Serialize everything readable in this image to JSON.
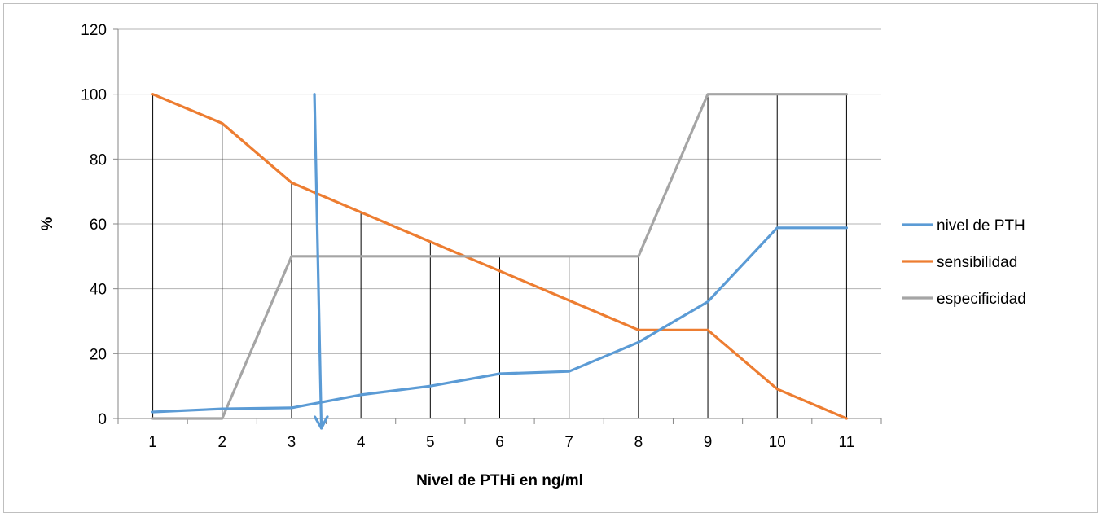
{
  "chart_data": {
    "type": "line",
    "title": "",
    "xlabel": "Nivel de PTHi en ng/ml",
    "ylabel": "%",
    "categories": [
      "1",
      "2",
      "3",
      "4",
      "5",
      "6",
      "7",
      "8",
      "9",
      "10",
      "11"
    ],
    "ylim": [
      0,
      120
    ],
    "yticks": [
      "0",
      "20",
      "40",
      "60",
      "80",
      "100",
      "120"
    ],
    "grid": "horizontal",
    "legend_position": "right",
    "series": [
      {
        "name": "nivel de PTH",
        "color": "#5B9BD5",
        "values": [
          2,
          3,
          3.3,
          7.3,
          10,
          13.8,
          14.5,
          23.5,
          36,
          58.8,
          58.8
        ]
      },
      {
        "name": "sensibilidad",
        "color": "#ED7D31",
        "values": [
          100,
          91,
          72.7,
          63.6,
          54.5,
          45.5,
          36.4,
          27.3,
          27.3,
          9.1,
          0
        ]
      },
      {
        "name": "especificidad",
        "color": "#A5A5A5",
        "values": [
          0,
          0,
          50,
          50,
          50,
          50,
          50,
          50,
          100,
          100,
          100
        ]
      }
    ],
    "drop_lines_to": "max of series",
    "annotations": [
      {
        "type": "arrow",
        "color": "#5B9BD5",
        "x_start": 3.33,
        "y_start": 100,
        "x_end": 3.43,
        "y_end": -3
      }
    ]
  }
}
